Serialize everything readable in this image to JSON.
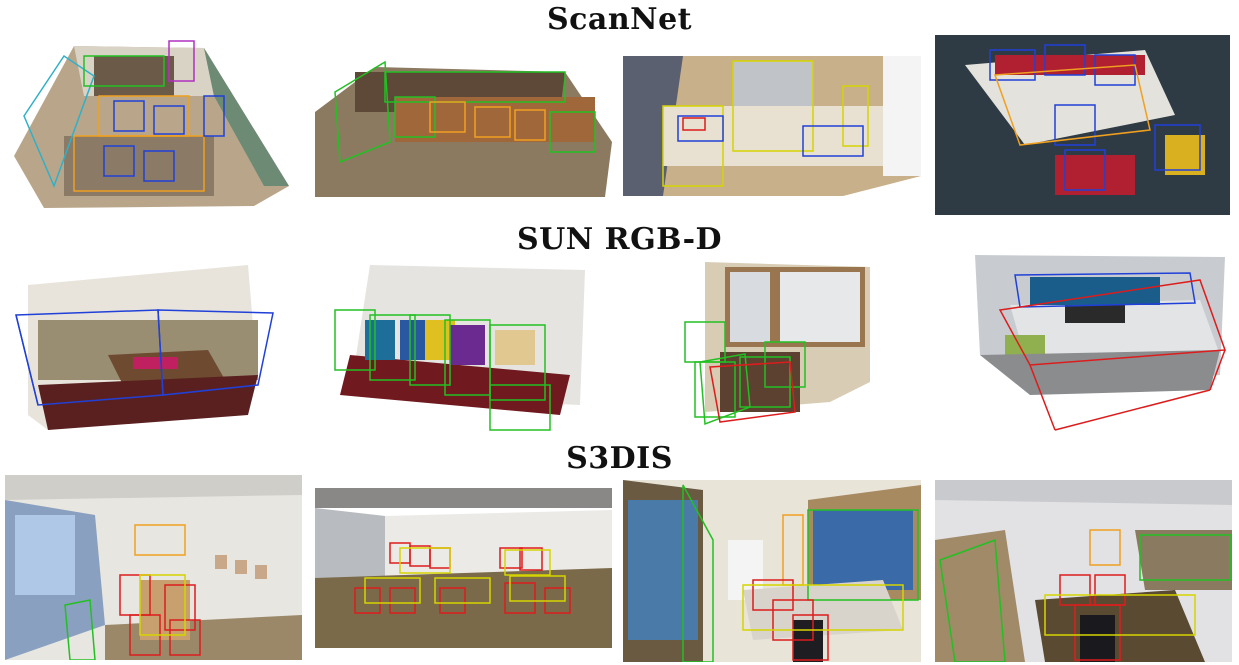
{
  "sections": [
    {
      "title": "ScanNet"
    },
    {
      "title": "SUN RGB-D"
    },
    {
      "title": "S3DIS"
    }
  ],
  "colors": {
    "box_green": "#22c022",
    "box_blue": "#2040d8",
    "box_red": "#dd1c1c",
    "box_yellow": "#d6d400",
    "box_orange": "#f0a020",
    "box_cyan": "#30b0c8",
    "box_magenta": "#b030c0"
  }
}
